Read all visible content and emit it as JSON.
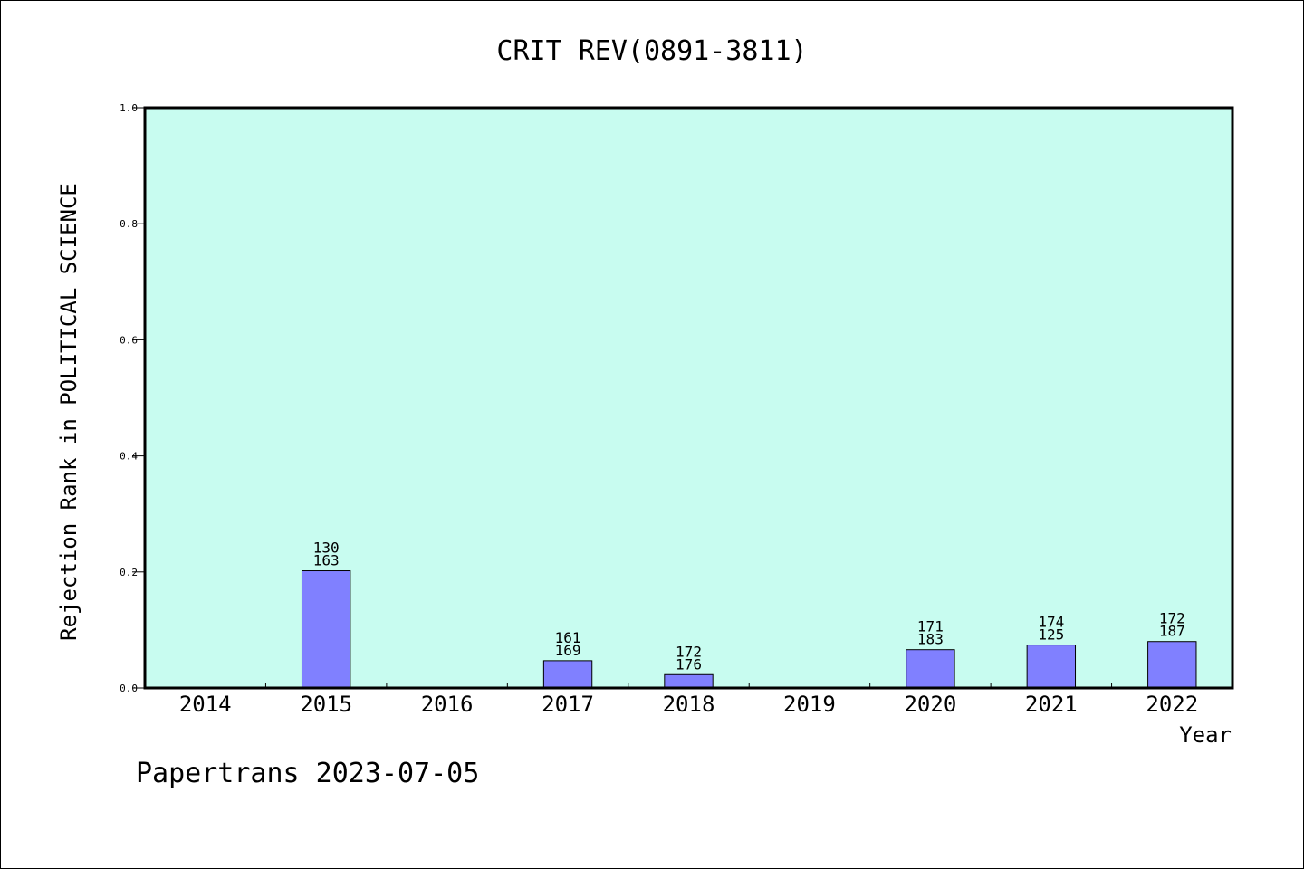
{
  "chart_data": {
    "type": "bar",
    "title": "CRIT REV(0891-3811)",
    "xlabel": "Year",
    "ylabel": "Rejection Rank in POLITICAL SCIENCE",
    "categories": [
      "2014",
      "2015",
      "2016",
      "2017",
      "2018",
      "2019",
      "2020",
      "2021",
      "2022"
    ],
    "values": [
      null,
      0.202,
      null,
      0.047,
      0.023,
      null,
      0.066,
      0.074,
      0.08
    ],
    "bar_labels": [
      null,
      [
        "130",
        "163"
      ],
      null,
      [
        "161",
        "169"
      ],
      [
        "172",
        "176"
      ],
      null,
      [
        "171",
        "183"
      ],
      [
        "174",
        "125"
      ],
      [
        "172",
        "187"
      ]
    ],
    "ylim": [
      0,
      1.0
    ],
    "yticks": [
      "0.0",
      "0.2",
      "0.4",
      "0.6",
      "0.8",
      "1.0"
    ],
    "grid": false,
    "legend": "none",
    "colors": {
      "plot_background": "#c8fcf0",
      "bar_fill": "#8080ff",
      "bar_stroke": "#000000"
    }
  },
  "footer": "Papertrans 2023-07-05"
}
